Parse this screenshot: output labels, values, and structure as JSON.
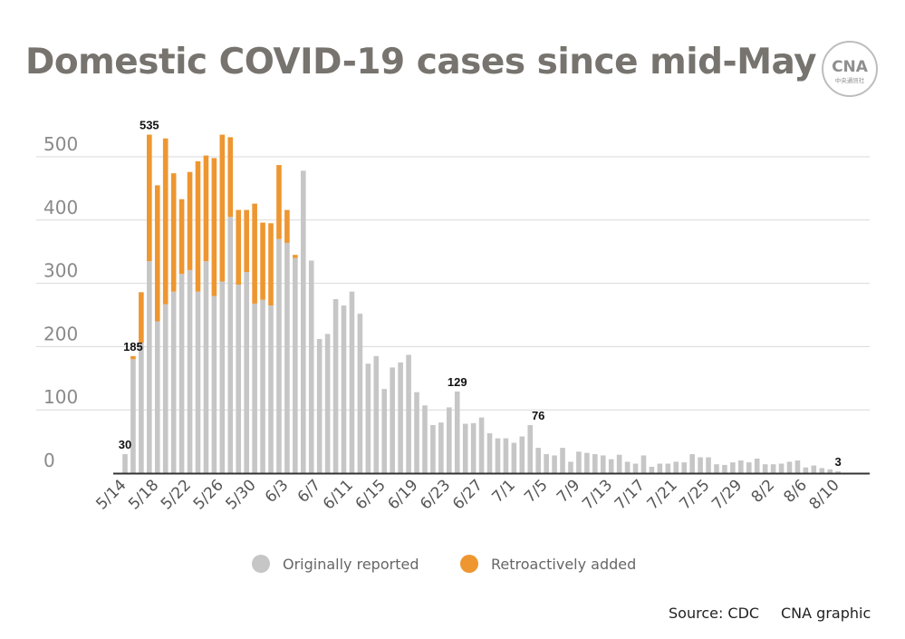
{
  "title": "Domestic COVID-19 cases since mid-May",
  "logo": {
    "text": "CNA",
    "subtext": "中央通訊社",
    "icon": "cna-logo-icon"
  },
  "legend": [
    {
      "label": "Originally reported",
      "color": "#c6c6c6"
    },
    {
      "label": "Retroactively added",
      "color": "#ee9630"
    }
  ],
  "source": "Source: CDC",
  "credit": "CNA graphic",
  "chart_data": {
    "type": "bar",
    "stacked": true,
    "categories": [
      "5/14",
      "5/15",
      "5/16",
      "5/17",
      "5/18",
      "5/19",
      "5/20",
      "5/21",
      "5/22",
      "5/23",
      "5/24",
      "5/25",
      "5/26",
      "5/27",
      "5/28",
      "5/29",
      "5/30",
      "5/31",
      "6/1",
      "6/2",
      "6/3",
      "6/4",
      "6/5",
      "6/6",
      "6/7",
      "6/8",
      "6/9",
      "6/10",
      "6/11",
      "6/12",
      "6/13",
      "6/14",
      "6/15",
      "6/16",
      "6/17",
      "6/18",
      "6/19",
      "6/20",
      "6/21",
      "6/22",
      "6/23",
      "6/24",
      "6/25",
      "6/26",
      "6/27",
      "6/28",
      "6/29",
      "6/30",
      "7/1",
      "7/2",
      "7/3",
      "7/4",
      "7/5",
      "7/6",
      "7/7",
      "7/8",
      "7/9",
      "7/10",
      "7/11",
      "7/12",
      "7/13",
      "7/14",
      "7/15",
      "7/16",
      "7/17",
      "7/18",
      "7/19",
      "7/20",
      "7/21",
      "7/22",
      "7/23",
      "7/24",
      "7/25",
      "7/26",
      "7/27",
      "7/28",
      "7/29",
      "7/30",
      "7/31",
      "8/1",
      "8/2",
      "8/3",
      "8/4",
      "8/5",
      "8/6",
      "8/7",
      "8/8",
      "8/9",
      "8/10"
    ],
    "x_tick_labels": [
      "5/14",
      "5/18",
      "5/22",
      "5/26",
      "5/30",
      "6/3",
      "6/7",
      "6/11",
      "6/15",
      "6/19",
      "6/23",
      "6/27",
      "7/1",
      "7/5",
      "7/9",
      "7/13",
      "7/17",
      "7/21",
      "7/25",
      "7/29",
      "8/2",
      "8/6",
      "8/10"
    ],
    "series": [
      {
        "name": "Originally reported",
        "color": "#c6c6c6",
        "values": [
          30,
          180,
          206,
          335,
          240,
          267,
          287,
          315,
          321,
          287,
          335,
          280,
          303,
          405,
          298,
          318,
          268,
          274,
          265,
          370,
          364,
          340,
          478,
          336,
          212,
          220,
          275,
          265,
          287,
          252,
          173,
          185,
          133,
          167,
          175,
          187,
          128,
          107,
          76,
          80,
          104,
          129,
          78,
          79,
          88,
          63,
          55,
          55,
          48,
          58,
          76,
          40,
          30,
          28,
          40,
          18,
          34,
          32,
          30,
          28,
          22,
          29,
          18,
          15,
          28,
          10,
          15,
          15,
          18,
          17,
          30,
          25,
          25,
          14,
          13,
          17,
          20,
          17,
          23,
          14,
          14,
          15,
          18,
          20,
          9,
          12,
          8,
          6,
          3
        ]
      },
      {
        "name": "Retroactively added",
        "color": "#ee9630",
        "values": [
          0,
          5,
          80,
          200,
          215,
          262,
          187,
          118,
          155,
          206,
          167,
          218,
          232,
          126,
          118,
          98,
          158,
          122,
          130,
          117,
          52,
          5,
          0,
          0,
          0,
          0,
          0,
          0,
          0,
          0,
          0,
          0,
          0,
          0,
          0,
          0,
          0,
          0,
          0,
          0,
          0,
          0,
          0,
          0,
          0,
          0,
          0,
          0,
          0,
          0,
          0,
          0,
          0,
          0,
          0,
          0,
          0,
          0,
          0,
          0,
          0,
          0,
          0,
          0,
          0,
          0,
          0,
          0,
          0,
          0,
          0,
          0,
          0,
          0,
          0,
          0,
          0,
          0,
          0,
          0,
          0,
          0,
          0,
          0,
          0,
          0,
          0,
          0,
          0
        ]
      }
    ],
    "data_labels": [
      {
        "x": "5/14",
        "value": 30,
        "text": "30"
      },
      {
        "x": "5/15",
        "value": 185,
        "text": "185"
      },
      {
        "x": "5/17",
        "value": 535,
        "text": "535"
      },
      {
        "x": "6/24",
        "value": 129,
        "text": "129"
      },
      {
        "x": "7/4",
        "value": 76,
        "text": "76"
      },
      {
        "x": "8/10",
        "value": 3,
        "text": "3"
      }
    ],
    "ylim": [
      0,
      500
    ],
    "yticks": [
      0,
      100,
      200,
      300,
      400,
      500
    ],
    "grid": true,
    "xlabel": "",
    "ylabel": "",
    "legend_position": "bottom"
  }
}
